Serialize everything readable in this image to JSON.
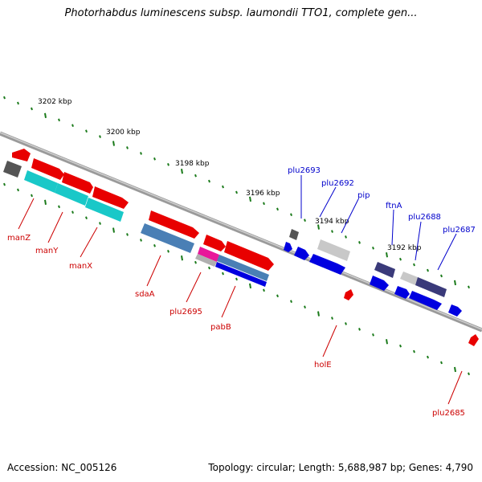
{
  "title": "Photorhabdus luminescens subsp. laumondii TTO1, complete gen...",
  "footer": {
    "accession": "Accession: NC_005126",
    "topology": "Topology: circular; Length: 5,688,987 bp; Genes: 4,790"
  },
  "colors": {
    "strand_line": "#8a8a8a",
    "tick": "#1a7a1a",
    "label_forward_strand": "#cc0000",
    "label_reverse_strand": "#0000cc"
  },
  "scale_ticks": [
    "3202 kbp",
    "3200 kbp",
    "3198 kbp",
    "3196 kbp",
    "3194 kbp",
    "3192 kbp"
  ],
  "genes": [
    {
      "name": "manZ"
    },
    {
      "name": "manY"
    },
    {
      "name": "manX"
    },
    {
      "name": "sdaA"
    },
    {
      "name": "plu2695"
    },
    {
      "name": "pabB"
    },
    {
      "name": "holE"
    },
    {
      "name": "plu2685"
    },
    {
      "name": "plu2693"
    },
    {
      "name": "plu2692"
    },
    {
      "name": "pip"
    },
    {
      "name": "ftnA"
    },
    {
      "name": "plu2688"
    },
    {
      "name": "plu2687"
    }
  ]
}
